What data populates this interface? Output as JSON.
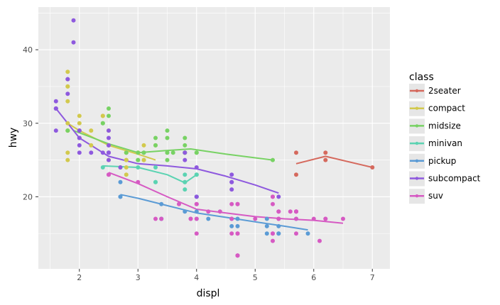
{
  "chart_data": {
    "type": "scatter",
    "xlabel": "displ",
    "ylabel": "hwy",
    "xlim": [
      1.3,
      7.3
    ],
    "ylim": [
      10.2,
      45.8
    ],
    "xticks": [
      2,
      3,
      4,
      5,
      6,
      7
    ],
    "yticks": [
      20,
      30,
      40
    ],
    "grid": true,
    "legend_position": "right",
    "legend_title": "class",
    "series": [
      {
        "name": "2seater",
        "color": "#D5695D",
        "points": [
          [
            5.7,
            26
          ],
          [
            5.7,
            23
          ],
          [
            6.2,
            26
          ],
          [
            6.2,
            25
          ],
          [
            7.0,
            24
          ]
        ],
        "trend": [
          [
            5.7,
            24.5
          ],
          [
            6.2,
            25.5
          ],
          [
            7.0,
            24.0
          ]
        ]
      },
      {
        "name": "compact",
        "color": "#D2C94D",
        "points": [
          [
            1.8,
            29
          ],
          [
            1.8,
            29
          ],
          [
            2.0,
            31
          ],
          [
            2.0,
            30
          ],
          [
            2.8,
            26
          ],
          [
            2.8,
            26
          ],
          [
            3.1,
            27
          ],
          [
            1.8,
            26
          ],
          [
            1.8,
            25
          ],
          [
            2.0,
            28
          ],
          [
            2.0,
            29
          ],
          [
            2.8,
            25
          ],
          [
            2.8,
            25
          ],
          [
            3.1,
            25
          ],
          [
            3.1,
            25
          ],
          [
            1.8,
            37
          ],
          [
            1.8,
            35
          ],
          [
            1.8,
            35
          ],
          [
            1.8,
            33
          ],
          [
            1.8,
            30
          ],
          [
            2.0,
            29
          ],
          [
            2.2,
            29
          ],
          [
            2.2,
            27
          ],
          [
            2.4,
            31
          ],
          [
            2.4,
            31
          ],
          [
            3.0,
            26
          ],
          [
            3.0,
            26
          ],
          [
            3.3,
            27
          ],
          [
            1.8,
            29
          ],
          [
            2.5,
            29
          ],
          [
            2.5,
            27
          ],
          [
            2.5,
            25
          ],
          [
            2.8,
            23
          ],
          [
            2.8,
            24
          ]
        ],
        "trend": [
          [
            1.8,
            30.0
          ],
          [
            2.0,
            29.0
          ],
          [
            2.5,
            27.0
          ],
          [
            3.0,
            25.8
          ],
          [
            3.3,
            25.0
          ]
        ]
      },
      {
        "name": "midsize",
        "color": "#78D264",
        "points": [
          [
            2.4,
            30
          ],
          [
            2.4,
            30
          ],
          [
            2.5,
            32
          ],
          [
            2.5,
            31
          ],
          [
            3.1,
            26
          ],
          [
            3.1,
            26
          ],
          [
            3.5,
            29
          ],
          [
            3.5,
            28
          ],
          [
            3.5,
            26
          ],
          [
            3.5,
            26
          ],
          [
            3.6,
            26
          ],
          [
            3.8,
            28
          ],
          [
            3.8,
            27
          ],
          [
            3.8,
            26
          ],
          [
            3.8,
            26
          ],
          [
            3.3,
            27
          ],
          [
            3.3,
            28
          ],
          [
            3.0,
            26
          ],
          [
            3.0,
            25
          ],
          [
            3.0,
            25
          ],
          [
            2.8,
            26
          ],
          [
            3.5,
            25
          ],
          [
            1.8,
            29
          ],
          [
            2.7,
            24
          ],
          [
            4.0,
            26
          ],
          [
            4.0,
            26
          ],
          [
            3.8,
            26
          ],
          [
            5.3,
            25
          ]
        ],
        "trend": [
          [
            1.9,
            29.0
          ],
          [
            2.5,
            27.2
          ],
          [
            3.0,
            26.0
          ],
          [
            3.5,
            26.3
          ],
          [
            3.9,
            26.5
          ],
          [
            4.5,
            25.8
          ],
          [
            5.3,
            25.0
          ]
        ]
      },
      {
        "name": "minivan",
        "color": "#5BD3B2",
        "points": [
          [
            2.4,
            24
          ],
          [
            3.0,
            24
          ],
          [
            3.3,
            22
          ],
          [
            3.3,
            22
          ],
          [
            3.3,
            24
          ],
          [
            3.8,
            23
          ],
          [
            3.8,
            22
          ],
          [
            3.8,
            21
          ],
          [
            4.0,
            23
          ],
          [
            3.8,
            22
          ],
          [
            4.0,
            23
          ]
        ],
        "trend": [
          [
            2.4,
            24.2
          ],
          [
            3.0,
            24.0
          ],
          [
            3.5,
            23.0
          ],
          [
            3.8,
            21.9
          ],
          [
            4.0,
            23.0
          ]
        ]
      },
      {
        "name": "pickup",
        "color": "#5B9BD5",
        "points": [
          [
            2.7,
            20
          ],
          [
            2.7,
            20
          ],
          [
            2.7,
            22
          ],
          [
            3.4,
            17
          ],
          [
            3.4,
            17
          ],
          [
            3.4,
            19
          ],
          [
            4.0,
            17
          ],
          [
            4.0,
            18
          ],
          [
            4.0,
            20
          ],
          [
            4.2,
            17
          ],
          [
            4.6,
            17
          ],
          [
            4.6,
            16
          ],
          [
            4.7,
            16
          ],
          [
            4.7,
            17
          ],
          [
            5.2,
            15
          ],
          [
            5.2,
            16
          ],
          [
            5.4,
            16
          ],
          [
            5.4,
            15
          ],
          [
            5.7,
            17
          ],
          [
            5.9,
            15
          ],
          [
            4.0,
            20
          ],
          [
            3.8,
            18
          ],
          [
            5.2,
            17
          ],
          [
            5.4,
            15
          ]
        ],
        "trend": [
          [
            2.7,
            20.3
          ],
          [
            3.0,
            19.8
          ],
          [
            3.5,
            18.8
          ],
          [
            4.0,
            17.8
          ],
          [
            4.5,
            17.2
          ],
          [
            5.0,
            16.6
          ],
          [
            5.5,
            16.0
          ],
          [
            5.9,
            15.5
          ]
        ]
      },
      {
        "name": "subcompact",
        "color": "#8E59DE",
        "points": [
          [
            1.6,
            33
          ],
          [
            1.6,
            32
          ],
          [
            1.6,
            32
          ],
          [
            1.6,
            29
          ],
          [
            1.6,
            32
          ],
          [
            1.8,
            34
          ],
          [
            1.8,
            36
          ],
          [
            1.8,
            36
          ],
          [
            1.9,
            44
          ],
          [
            1.9,
            41
          ],
          [
            2.0,
            29
          ],
          [
            2.0,
            26
          ],
          [
            2.0,
            28
          ],
          [
            2.0,
            27
          ],
          [
            2.2,
            26
          ],
          [
            2.5,
            28
          ],
          [
            2.5,
            29
          ],
          [
            2.5,
            26
          ],
          [
            2.4,
            26
          ],
          [
            2.5,
            27
          ],
          [
            2.5,
            25
          ],
          [
            2.7,
            24
          ],
          [
            3.8,
            26
          ],
          [
            3.8,
            25
          ],
          [
            4.0,
            24
          ],
          [
            4.0,
            20
          ],
          [
            4.6,
            23
          ],
          [
            4.6,
            21
          ],
          [
            5.4,
            20
          ],
          [
            4.6,
            22
          ],
          [
            4.6,
            22
          ],
          [
            2.0,
            28
          ],
          [
            2.0,
            29
          ],
          [
            2.5,
            26
          ],
          [
            2.5,
            26
          ]
        ],
        "trend": [
          [
            1.6,
            32.0
          ],
          [
            1.8,
            30.0
          ],
          [
            2.0,
            28.0
          ],
          [
            2.5,
            25.5
          ],
          [
            3.0,
            24.5
          ],
          [
            3.5,
            24.2
          ],
          [
            4.0,
            23.8
          ],
          [
            4.5,
            22.8
          ],
          [
            5.0,
            21.6
          ],
          [
            5.4,
            20.5
          ]
        ]
      },
      {
        "name": "suv",
        "color": "#D65AC3",
        "points": [
          [
            5.3,
            20
          ],
          [
            5.3,
            15
          ],
          [
            5.3,
            20
          ],
          [
            5.7,
            17
          ],
          [
            6.0,
            17
          ],
          [
            5.7,
            18
          ],
          [
            5.7,
            18
          ],
          [
            6.2,
            17
          ],
          [
            6.2,
            17
          ],
          [
            5.3,
            14
          ],
          [
            4.0,
            15
          ],
          [
            4.0,
            19
          ],
          [
            4.0,
            19
          ],
          [
            4.7,
            12
          ],
          [
            4.7,
            12
          ],
          [
            4.7,
            12
          ],
          [
            5.7,
            15
          ],
          [
            6.1,
            14
          ],
          [
            5.3,
            19
          ],
          [
            5.3,
            15
          ],
          [
            5.6,
            18
          ],
          [
            4.6,
            19
          ],
          [
            5.4,
            17
          ],
          [
            5.4,
            18
          ],
          [
            5.7,
            18
          ],
          [
            6.5,
            17
          ],
          [
            2.5,
            23
          ],
          [
            2.5,
            23
          ],
          [
            3.0,
            22
          ],
          [
            3.7,
            19
          ],
          [
            3.9,
            17
          ],
          [
            4.2,
            18
          ],
          [
            4.4,
            18
          ],
          [
            4.7,
            19
          ],
          [
            4.7,
            19
          ],
          [
            5.0,
            17
          ],
          [
            3.9,
            17
          ],
          [
            4.0,
            17
          ],
          [
            4.6,
            15
          ],
          [
            4.6,
            17
          ],
          [
            4.7,
            15
          ],
          [
            4.7,
            15
          ],
          [
            5.4,
            17
          ],
          [
            5.4,
            18
          ],
          [
            3.3,
            17
          ],
          [
            3.4,
            17
          ]
        ],
        "trend": [
          [
            2.5,
            23.3
          ],
          [
            3.0,
            21.8
          ],
          [
            3.5,
            20.0
          ],
          [
            4.0,
            18.3
          ],
          [
            4.5,
            17.8
          ],
          [
            5.0,
            17.3
          ],
          [
            5.5,
            17.0
          ],
          [
            6.0,
            16.8
          ],
          [
            6.5,
            16.4
          ]
        ]
      }
    ]
  }
}
